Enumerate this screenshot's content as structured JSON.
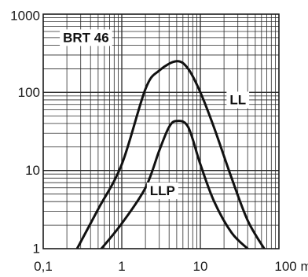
{
  "chart_data": {
    "type": "line",
    "x_scale": "log",
    "y_scale": "log",
    "xlim": [
      0.1,
      100
    ],
    "ylim": [
      1,
      1000
    ],
    "grid": true,
    "x_ticks": [
      {
        "value": 0.1,
        "label": "0,1"
      },
      {
        "value": 1,
        "label": "1"
      },
      {
        "value": 10,
        "label": "10"
      },
      {
        "value": 100,
        "label": "100 m"
      }
    ],
    "y_ticks": [
      {
        "value": 1,
        "label": "1"
      },
      {
        "value": 10,
        "label": "10"
      },
      {
        "value": 100,
        "label": "100"
      },
      {
        "value": 1000,
        "label": "1000"
      }
    ],
    "annotations": [
      {
        "text": "BRT 46",
        "x": 0.35,
        "y": 500
      },
      {
        "text": "LL",
        "x": 30,
        "y": 80
      },
      {
        "text": "LLP",
        "x": 3.3,
        "y": 5.5
      }
    ],
    "series": [
      {
        "name": "LL",
        "points": [
          {
            "x": 0.27,
            "y": 1
          },
          {
            "x": 0.5,
            "y": 3.2
          },
          {
            "x": 1,
            "y": 12
          },
          {
            "x": 2,
            "y": 110
          },
          {
            "x": 3,
            "y": 190
          },
          {
            "x": 5,
            "y": 250
          },
          {
            "x": 7,
            "y": 200
          },
          {
            "x": 10,
            "y": 100
          },
          {
            "x": 15,
            "y": 35
          },
          {
            "x": 25,
            "y": 8
          },
          {
            "x": 40,
            "y": 2.3
          },
          {
            "x": 65,
            "y": 1
          }
        ]
      },
      {
        "name": "LLP",
        "points": [
          {
            "x": 0.55,
            "y": 1
          },
          {
            "x": 1,
            "y": 2.1
          },
          {
            "x": 2,
            "y": 6
          },
          {
            "x": 3,
            "y": 18
          },
          {
            "x": 4,
            "y": 36
          },
          {
            "x": 5,
            "y": 43
          },
          {
            "x": 7,
            "y": 36
          },
          {
            "x": 10,
            "y": 12
          },
          {
            "x": 15,
            "y": 4
          },
          {
            "x": 25,
            "y": 1.6
          },
          {
            "x": 40,
            "y": 1
          }
        ]
      }
    ]
  }
}
